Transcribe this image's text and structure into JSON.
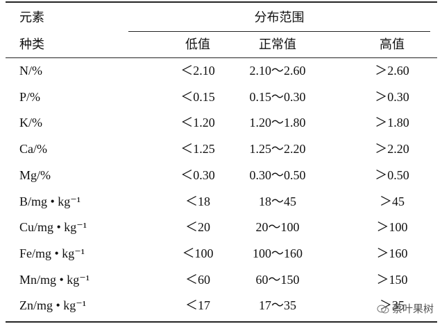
{
  "table": {
    "header": {
      "element_label": "元素",
      "kind_label": "种类",
      "range_label": "分布范围",
      "columns": [
        "低值",
        "正常值",
        "高值"
      ]
    },
    "rows": [
      [
        "N/%",
        "＜2.10",
        "2.10～2.60",
        "＞2.60"
      ],
      [
        "P/%",
        "＜0.15",
        "0.15～0.30",
        "＞0.30"
      ],
      [
        "K/%",
        "＜1.20",
        "1.20～1.80",
        "＞1.80"
      ],
      [
        "Ca/%",
        "＜1.25",
        "1.25～2.20",
        "＞2.20"
      ],
      [
        "Mg/%",
        "＜0.30",
        "0.30～0.50",
        "＞0.50"
      ],
      [
        "B/mg • kg⁻¹",
        "＜18",
        "18～45",
        "＞45"
      ],
      [
        "Cu/mg • kg⁻¹",
        "＜20",
        "20～100",
        "＞100"
      ],
      [
        "Fe/mg • kg⁻¹",
        "＜100",
        "100～160",
        "＞160"
      ],
      [
        "Mn/mg • kg⁻¹",
        "＜60",
        "60～150",
        "＞150"
      ],
      [
        "Zn/mg • kg⁻¹",
        "＜17",
        "17～35",
        "＞35"
      ]
    ]
  },
  "watermark": "蔡叶果树"
}
